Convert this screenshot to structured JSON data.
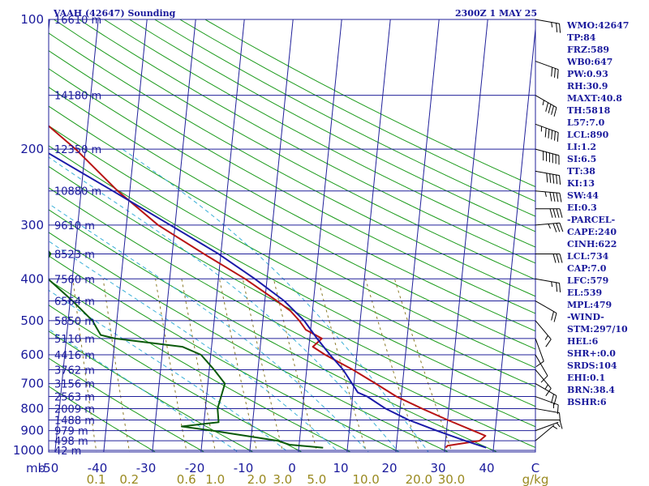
{
  "header": {
    "station": "VAAH (42647) Sounding",
    "time": "2300Z  1 MAY 25"
  },
  "indices": [
    "WMO:42647",
    "TP:84",
    "FRZ:589",
    "WB0:647",
    "PW:0.93",
    "RH:30.9",
    "MAXT:40.8",
    "TH:5818",
    "L57:7.0",
    "LCL:890",
    "LI:1.2",
    "SI:6.5",
    "TT:38",
    "KI:13",
    "SW:44",
    "EI:0.3",
    "-PARCEL-",
    "CAPE:240",
    "CINH:622",
    "LCL:734",
    "CAP:7.0",
    "LFC:579",
    "EL:539",
    "MPL:479",
    "-WIND-",
    "STM:297/10",
    "HEL:6",
    "SHR+:0.0",
    "SRDS:104",
    "EHI:0.1",
    "BRN:38.4",
    "BSHR:6"
  ],
  "chart_data": {
    "type": "skew-t",
    "y_axis": {
      "label": "mb",
      "scale": "log",
      "range": [
        1000,
        100
      ],
      "ticks": [
        100,
        200,
        300,
        400,
        500,
        600,
        700,
        800,
        900,
        1000
      ]
    },
    "x_axis": {
      "unit": "C",
      "range": [
        -50,
        50
      ],
      "ticks": [
        "-50",
        "-40",
        "-30",
        "-20",
        "-10",
        "0",
        "10",
        "20",
        "30",
        "40",
        "C"
      ]
    },
    "mixing_ratio_axis": {
      "unit": "g/kg",
      "ticks": [
        "0.1",
        "0.2",
        "0.6",
        "1.0",
        "2.0",
        "3.0",
        "5.0",
        "10.0",
        "20.0",
        "30.0"
      ]
    },
    "levels": [
      {
        "p": 100,
        "h": "16610 m"
      },
      {
        "p": 150,
        "h": "14180 m"
      },
      {
        "p": 200,
        "h": "12350 m"
      },
      {
        "p": 250,
        "h": "10880 m"
      },
      {
        "p": 300,
        "h": "9610 m"
      },
      {
        "p": 350,
        "h": "8523 m"
      },
      {
        "p": 400,
        "h": "7560 m"
      },
      {
        "p": 450,
        "h": "6564 m"
      },
      {
        "p": 500,
        "h": "5850 m"
      },
      {
        "p": 550,
        "h": "5110 m"
      },
      {
        "p": 600,
        "h": "4416 m"
      },
      {
        "p": 650,
        "h": "3762 m"
      },
      {
        "p": 700,
        "h": "3156 m"
      },
      {
        "p": 750,
        "h": "2563 m"
      },
      {
        "p": 800,
        "h": "2009 m"
      },
      {
        "p": 850,
        "h": "1488 m"
      },
      {
        "p": 900,
        "h": "979 m"
      },
      {
        "p": 950,
        "h": "498 m"
      },
      {
        "p": 1000,
        "h": "42 m"
      }
    ],
    "series": [
      {
        "id": "temperature",
        "color": "#b81414",
        "points": [
          [
            986,
            30.2
          ],
          [
            975,
            30.5
          ],
          [
            950,
            37.0
          ],
          [
            925,
            38.1
          ],
          [
            900,
            35.5
          ],
          [
            850,
            30.0
          ],
          [
            800,
            24.5
          ],
          [
            750,
            19.0
          ],
          [
            700,
            14.5
          ],
          [
            650,
            9.5
          ],
          [
            600,
            3.5
          ],
          [
            575,
            0.8
          ],
          [
            550,
            2.5
          ],
          [
            525,
            -1.0
          ],
          [
            500,
            -2.5
          ],
          [
            475,
            -4.5
          ],
          [
            450,
            -7.5
          ],
          [
            400,
            -14.5
          ],
          [
            350,
            -23.5
          ],
          [
            300,
            -33.5
          ],
          [
            250,
            -42.5
          ],
          [
            200,
            -52.0
          ],
          [
            150,
            -66.0
          ],
          [
            125,
            -69.5
          ],
          [
            100,
            -76.0
          ]
        ]
      },
      {
        "id": "dewpoint",
        "color": "#0a5a0a",
        "points": [
          [
            986,
            5.0
          ],
          [
            970,
            -2.0
          ],
          [
            950,
            -4.5
          ],
          [
            900,
            -18.0
          ],
          [
            880,
            -24.5
          ],
          [
            860,
            -17.0
          ],
          [
            800,
            -17.5
          ],
          [
            700,
            -16.5
          ],
          [
            650,
            -19.0
          ],
          [
            600,
            -22.0
          ],
          [
            575,
            -26.0
          ],
          [
            550,
            -40.0
          ],
          [
            540,
            -43.0
          ],
          [
            520,
            -44.0
          ],
          [
            500,
            -45.0
          ],
          [
            450,
            -49.5
          ],
          [
            400,
            -55.0
          ],
          [
            370,
            -56.0
          ],
          [
            350,
            -55.0
          ],
          [
            300,
            -60.0
          ],
          [
            250,
            -69.5
          ],
          [
            220,
            -79.5
          ],
          [
            200,
            -83.0
          ],
          [
            150,
            -94.5
          ],
          [
            125,
            -97.0
          ],
          [
            100,
            -102.0
          ]
        ]
      },
      {
        "id": "parcel",
        "color": "#1a1aa8",
        "points": [
          [
            986,
            38.5
          ],
          [
            950,
            34.0
          ],
          [
            900,
            28.0
          ],
          [
            850,
            22.0
          ],
          [
            800,
            17.0
          ],
          [
            750,
            13.0
          ],
          [
            734,
            11.0
          ],
          [
            650,
            7.5
          ],
          [
            600,
            4.5
          ],
          [
            550,
            1.5
          ],
          [
            500,
            -1.5
          ],
          [
            450,
            -6.0
          ],
          [
            400,
            -12.5
          ],
          [
            350,
            -20.5
          ],
          [
            300,
            -31.0
          ],
          [
            250,
            -43.5
          ],
          [
            200,
            -59.0
          ],
          [
            150,
            -78.0
          ],
          [
            130,
            -87.0
          ]
        ]
      }
    ],
    "wind_barbs": [
      {
        "p": 100,
        "dir": 280,
        "spd": 25
      },
      {
        "p": 125,
        "dir": 290,
        "spd": 30
      },
      {
        "p": 150,
        "dir": 300,
        "spd": 45
      },
      {
        "p": 175,
        "dir": 290,
        "spd": 55
      },
      {
        "p": 200,
        "dir": 285,
        "spd": 60
      },
      {
        "p": 225,
        "dir": 280,
        "spd": 50
      },
      {
        "p": 250,
        "dir": 275,
        "spd": 45
      },
      {
        "p": 275,
        "dir": 270,
        "spd": 40
      },
      {
        "p": 300,
        "dir": 265,
        "spd": 35
      },
      {
        "p": 350,
        "dir": 270,
        "spd": 30
      },
      {
        "p": 400,
        "dir": 280,
        "spd": 25
      },
      {
        "p": 450,
        "dir": 300,
        "spd": 20
      },
      {
        "p": 500,
        "dir": 320,
        "spd": 15
      },
      {
        "p": 550,
        "dir": 340,
        "spd": 10
      },
      {
        "p": 600,
        "dir": 330,
        "spd": 10
      },
      {
        "p": 650,
        "dir": 320,
        "spd": 15
      },
      {
        "p": 700,
        "dir": 300,
        "spd": 20
      },
      {
        "p": 750,
        "dir": 290,
        "spd": 15
      },
      {
        "p": 800,
        "dir": 280,
        "spd": 10
      },
      {
        "p": 850,
        "dir": 270,
        "spd": 10
      },
      {
        "p": 900,
        "dir": 250,
        "spd": 5
      },
      {
        "p": 950,
        "dir": 230,
        "spd": 5
      }
    ],
    "grid": true
  }
}
